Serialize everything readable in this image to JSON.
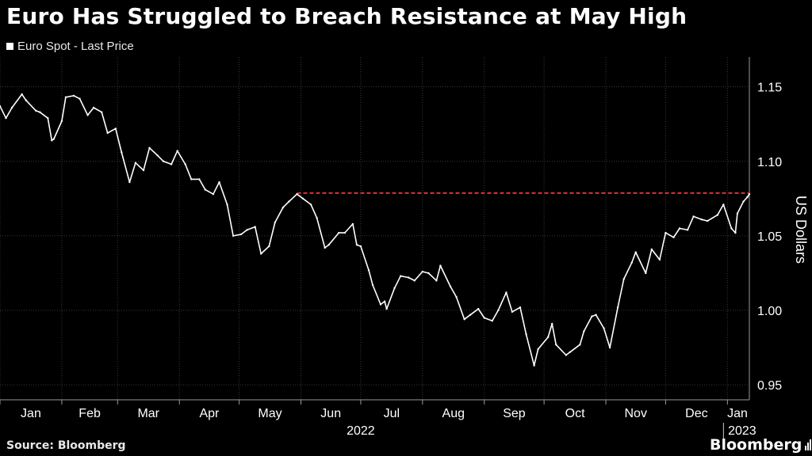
{
  "title": "Euro Has Struggled to Breach Resistance at May High",
  "source": "Source: Bloomberg",
  "brand": "Bloomberg",
  "colors": {
    "background": "#000000",
    "series": "#ffffff",
    "resistance": "#e0303a",
    "grid": "#3a3a3a"
  },
  "chart_data": {
    "type": "line",
    "title": "Euro Has Struggled to Breach Resistance at May High",
    "ylabel": "US Dollars",
    "ylim": [
      0.94,
      1.17
    ],
    "y_ticks": [
      "0.95",
      "1.00",
      "1.05",
      "1.10",
      "1.15"
    ],
    "x_range": [
      "2022-01-01",
      "2023-01-12"
    ],
    "x_ticks": [
      {
        "date": "2022-01-01",
        "label": "Jan"
      },
      {
        "date": "2022-02-01",
        "label": "Feb"
      },
      {
        "date": "2022-03-01",
        "label": "Mar"
      },
      {
        "date": "2022-04-01",
        "label": "Apr"
      },
      {
        "date": "2022-05-01",
        "label": "May"
      },
      {
        "date": "2022-06-01",
        "label": "Jun"
      },
      {
        "date": "2022-07-01",
        "label": "Jul"
      },
      {
        "date": "2022-08-01",
        "label": "Aug"
      },
      {
        "date": "2022-09-01",
        "label": "Sep"
      },
      {
        "date": "2022-10-01",
        "label": "Oct"
      },
      {
        "date": "2022-11-01",
        "label": "Nov"
      },
      {
        "date": "2022-12-01",
        "label": "Dec"
      },
      {
        "date": "2023-01-01",
        "label": "Jan"
      }
    ],
    "year_labels": [
      {
        "date": "2022-07-01",
        "label": "2022"
      },
      {
        "date": "2023-01-06",
        "label": "2023"
      }
    ],
    "legend": "top-left",
    "grid": true,
    "series": [
      {
        "name": "Euro Spot - Last Price",
        "points": [
          [
            "2022-01-01",
            1.137
          ],
          [
            "2022-01-04",
            1.129
          ],
          [
            "2022-01-07",
            1.136
          ],
          [
            "2022-01-12",
            1.145
          ],
          [
            "2022-01-14",
            1.141
          ],
          [
            "2022-01-19",
            1.134
          ],
          [
            "2022-01-21",
            1.133
          ],
          [
            "2022-01-25",
            1.129
          ],
          [
            "2022-01-27",
            1.114
          ],
          [
            "2022-01-28",
            1.115
          ],
          [
            "2022-02-01",
            1.127
          ],
          [
            "2022-02-03",
            1.143
          ],
          [
            "2022-02-07",
            1.144
          ],
          [
            "2022-02-10",
            1.142
          ],
          [
            "2022-02-14",
            1.131
          ],
          [
            "2022-02-17",
            1.136
          ],
          [
            "2022-02-21",
            1.133
          ],
          [
            "2022-02-24",
            1.119
          ],
          [
            "2022-02-28",
            1.122
          ],
          [
            "2022-03-03",
            1.106
          ],
          [
            "2022-03-07",
            1.086
          ],
          [
            "2022-03-10",
            1.099
          ],
          [
            "2022-03-14",
            1.094
          ],
          [
            "2022-03-17",
            1.109
          ],
          [
            "2022-03-21",
            1.104
          ],
          [
            "2022-03-24",
            1.1
          ],
          [
            "2022-03-28",
            1.098
          ],
          [
            "2022-03-31",
            1.107
          ],
          [
            "2022-04-04",
            1.098
          ],
          [
            "2022-04-07",
            1.088
          ],
          [
            "2022-04-11",
            1.088
          ],
          [
            "2022-04-14",
            1.081
          ],
          [
            "2022-04-18",
            1.078
          ],
          [
            "2022-04-21",
            1.086
          ],
          [
            "2022-04-25",
            1.071
          ],
          [
            "2022-04-28",
            1.05
          ],
          [
            "2022-05-02",
            1.051
          ],
          [
            "2022-05-05",
            1.054
          ],
          [
            "2022-05-09",
            1.056
          ],
          [
            "2022-05-12",
            1.038
          ],
          [
            "2022-05-16",
            1.043
          ],
          [
            "2022-05-19",
            1.059
          ],
          [
            "2022-05-23",
            1.069
          ],
          [
            "2022-05-26",
            1.073
          ],
          [
            "2022-05-30",
            1.078
          ],
          [
            "2022-06-02",
            1.075
          ],
          [
            "2022-06-06",
            1.071
          ],
          [
            "2022-06-09",
            1.062
          ],
          [
            "2022-06-13",
            1.042
          ],
          [
            "2022-06-15",
            1.044
          ],
          [
            "2022-06-20",
            1.052
          ],
          [
            "2022-06-23",
            1.052
          ],
          [
            "2022-06-27",
            1.058
          ],
          [
            "2022-06-29",
            1.044
          ],
          [
            "2022-07-01",
            1.043
          ],
          [
            "2022-07-05",
            1.027
          ],
          [
            "2022-07-07",
            1.017
          ],
          [
            "2022-07-11",
            1.004
          ],
          [
            "2022-07-13",
            1.006
          ],
          [
            "2022-07-14",
            1.001
          ],
          [
            "2022-07-18",
            1.015
          ],
          [
            "2022-07-21",
            1.023
          ],
          [
            "2022-07-25",
            1.022
          ],
          [
            "2022-07-28",
            1.02
          ],
          [
            "2022-08-01",
            1.026
          ],
          [
            "2022-08-04",
            1.025
          ],
          [
            "2022-08-08",
            1.02
          ],
          [
            "2022-08-10",
            1.03
          ],
          [
            "2022-08-15",
            1.016
          ],
          [
            "2022-08-18",
            1.009
          ],
          [
            "2022-08-22",
            0.994
          ],
          [
            "2022-08-25",
            0.997
          ],
          [
            "2022-08-29",
            1.001
          ],
          [
            "2022-09-01",
            0.995
          ],
          [
            "2022-09-05",
            0.993
          ],
          [
            "2022-09-08",
            1.0
          ],
          [
            "2022-09-12",
            1.012
          ],
          [
            "2022-09-15",
            0.999
          ],
          [
            "2022-09-19",
            1.002
          ],
          [
            "2022-09-22",
            0.984
          ],
          [
            "2022-09-26",
            0.963
          ],
          [
            "2022-09-28",
            0.974
          ],
          [
            "2022-10-03",
            0.982
          ],
          [
            "2022-10-05",
            0.991
          ],
          [
            "2022-10-07",
            0.977
          ],
          [
            "2022-10-12",
            0.97
          ],
          [
            "2022-10-14",
            0.972
          ],
          [
            "2022-10-19",
            0.977
          ],
          [
            "2022-10-21",
            0.986
          ],
          [
            "2022-10-25",
            0.996
          ],
          [
            "2022-10-27",
            0.997
          ],
          [
            "2022-10-31",
            0.988
          ],
          [
            "2022-11-03",
            0.975
          ],
          [
            "2022-11-07",
            1.002
          ],
          [
            "2022-11-10",
            1.021
          ],
          [
            "2022-11-14",
            1.032
          ],
          [
            "2022-11-16",
            1.039
          ],
          [
            "2022-11-21",
            1.025
          ],
          [
            "2022-11-24",
            1.041
          ],
          [
            "2022-11-28",
            1.034
          ],
          [
            "2022-12-01",
            1.052
          ],
          [
            "2022-12-05",
            1.049
          ],
          [
            "2022-12-08",
            1.055
          ],
          [
            "2022-12-12",
            1.054
          ],
          [
            "2022-12-15",
            1.063
          ],
          [
            "2022-12-19",
            1.061
          ],
          [
            "2022-12-22",
            1.06
          ],
          [
            "2022-12-27",
            1.064
          ],
          [
            "2022-12-30",
            1.071
          ],
          [
            "2023-01-03",
            1.055
          ],
          [
            "2023-01-05",
            1.052
          ],
          [
            "2023-01-06",
            1.065
          ],
          [
            "2023-01-09",
            1.073
          ],
          [
            "2023-01-11",
            1.076
          ],
          [
            "2023-01-12",
            1.078
          ]
        ]
      }
    ],
    "annotations": [
      {
        "type": "hline",
        "y": 1.0787,
        "from": "2022-05-30",
        "to": "2023-01-12",
        "style": "dashed",
        "color": "#e0303a"
      }
    ]
  }
}
